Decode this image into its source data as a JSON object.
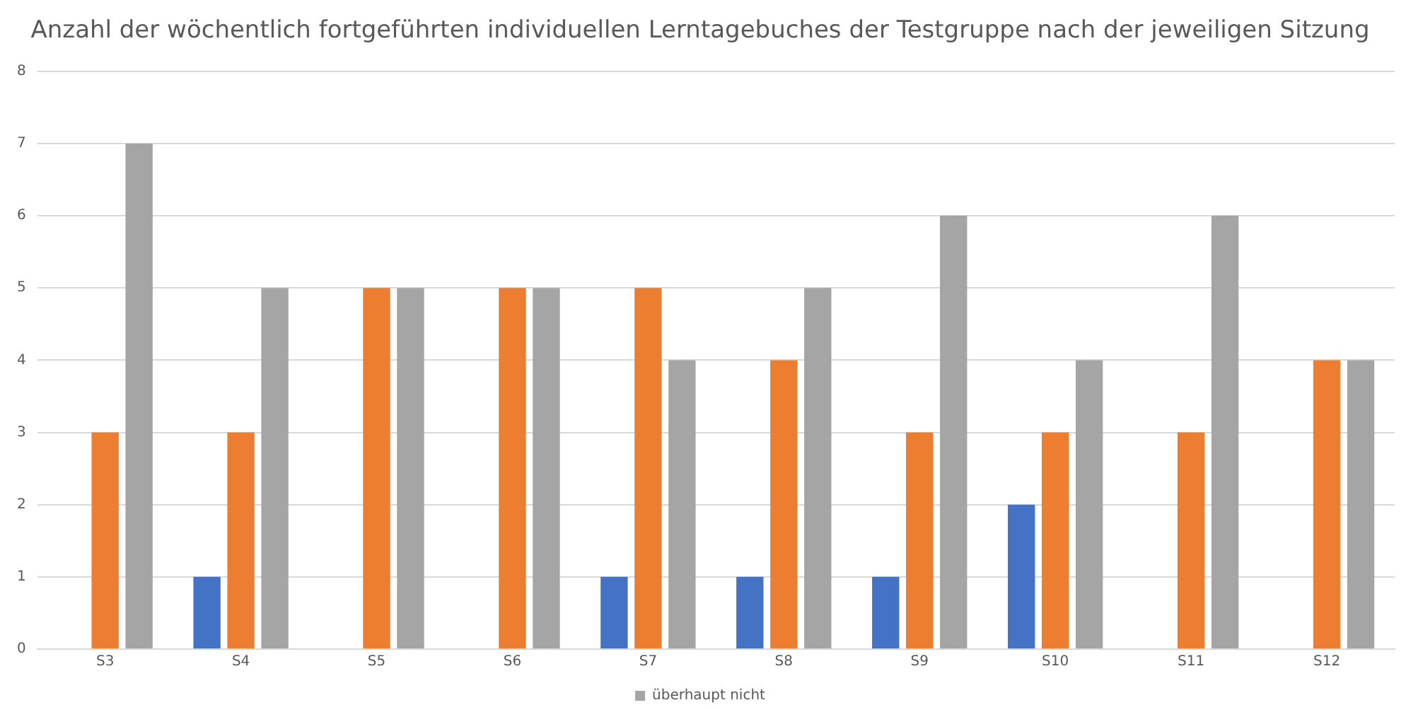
{
  "chart_data": {
    "type": "bar",
    "title": "Anzahl der wöchentlich fortgeführten individuellen Lerntagebuches der Testgruppe nach der jeweiligen Sitzung",
    "categories": [
      "S3",
      "S4",
      "S5",
      "S6",
      "S7",
      "S8",
      "S9",
      "S10",
      "S11",
      "S12"
    ],
    "series": [
      {
        "color": "#4472c4",
        "values": [
          0,
          1,
          0,
          0,
          1,
          1,
          1,
          2,
          0,
          0
        ]
      },
      {
        "color": "#ed7d31",
        "values": [
          3,
          3,
          5,
          5,
          5,
          4,
          3,
          3,
          3,
          4
        ]
      },
      {
        "name": "überhaupt nicht",
        "color": "#a5a5a5",
        "values": [
          7,
          5,
          5,
          5,
          4,
          5,
          6,
          4,
          6,
          4
        ]
      }
    ],
    "ylim": [
      0,
      8
    ],
    "yticks": [
      0,
      1,
      2,
      3,
      4,
      5,
      6,
      7,
      8
    ],
    "grid": "y",
    "legend": "bottom"
  }
}
